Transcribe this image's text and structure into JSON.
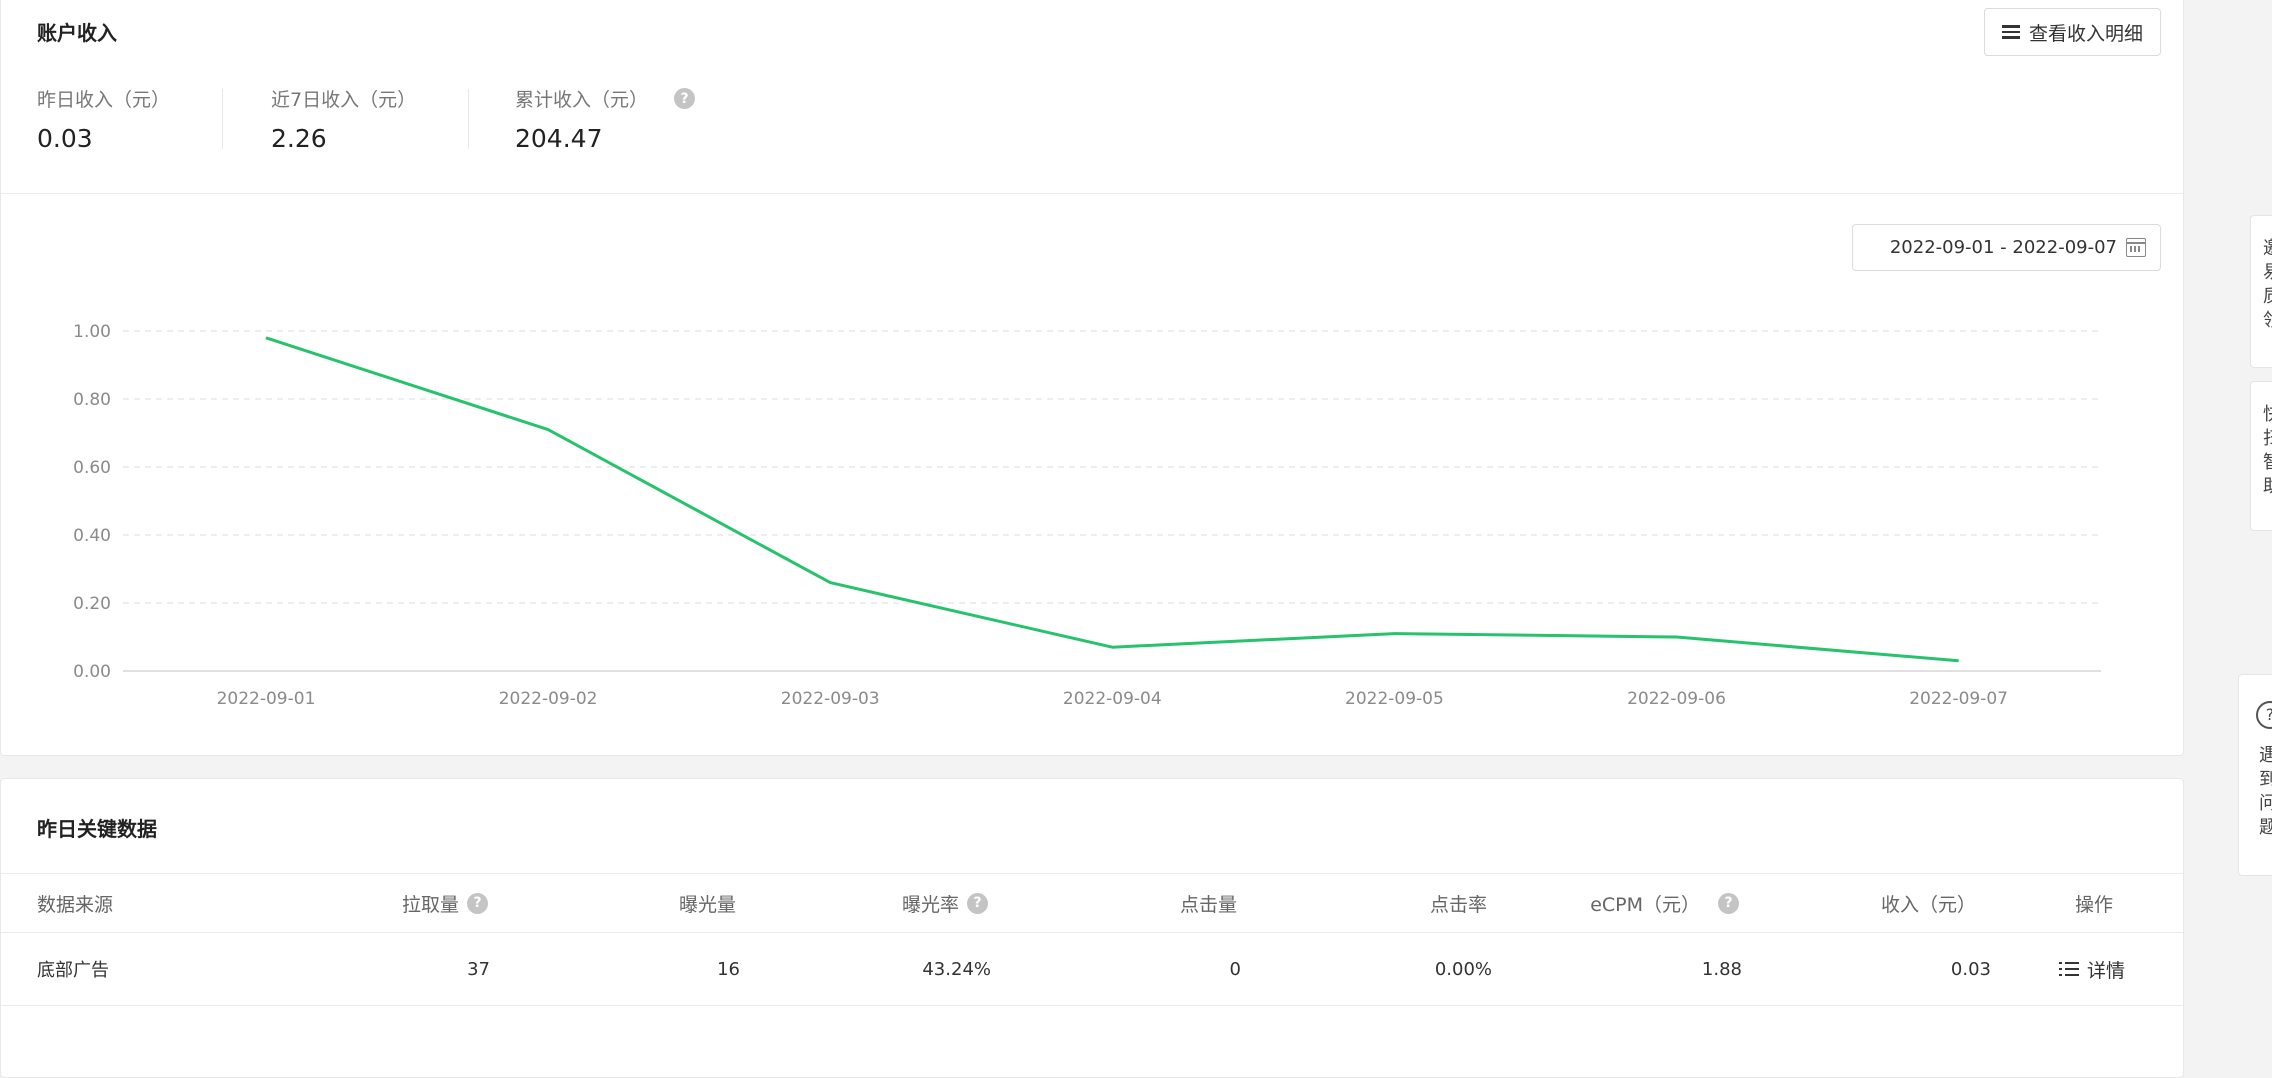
{
  "income": {
    "title": "账户收入",
    "view_detail_label": "查看收入明细",
    "stats": [
      {
        "label": "昨日收入（元）",
        "value": "0.03"
      },
      {
        "label": "近7日收入（元）",
        "value": "2.26"
      },
      {
        "label": "累计收入（元）",
        "value": "204.47",
        "help": "?"
      }
    ],
    "date_range": "2022-09-01 - 2022-09-07"
  },
  "chart_data": {
    "type": "line",
    "x": [
      "2022-09-01",
      "2022-09-02",
      "2022-09-03",
      "2022-09-04",
      "2022-09-05",
      "2022-09-06",
      "2022-09-07"
    ],
    "series": [
      {
        "values": [
          0.98,
          0.71,
          0.26,
          0.07,
          0.11,
          0.1,
          0.03
        ],
        "color": "#27c26c"
      }
    ],
    "yticks": [
      "0.00",
      "0.20",
      "0.40",
      "0.60",
      "0.80",
      "1.00"
    ],
    "ylim": [
      0,
      1
    ],
    "grid": true,
    "legend": "none"
  },
  "keydata": {
    "title": "昨日关键数据",
    "columns": [
      {
        "label": "数据来源",
        "help": ""
      },
      {
        "label": "拉取量",
        "help": "?"
      },
      {
        "label": "曝光量",
        "help": ""
      },
      {
        "label": "曝光率",
        "help": "?"
      },
      {
        "label": "点击量",
        "help": ""
      },
      {
        "label": "点击率",
        "help": ""
      },
      {
        "label": "eCPM（元）",
        "help": "?"
      },
      {
        "label": "收入（元）",
        "help": ""
      },
      {
        "label": "操作",
        "help": ""
      }
    ],
    "row": {
      "source": "底部广告",
      "pull": "37",
      "exposure": "16",
      "exposure_rate": "43.24%",
      "clicks": "0",
      "ctr": "0.00%",
      "ecpm": "1.88",
      "income": "0.03",
      "action": "详情"
    }
  },
  "float_panels": {
    "panel1": [
      "邀",
      "易",
      "质",
      "领"
    ],
    "panel2": [
      "快",
      "扫",
      "智",
      "助"
    ],
    "panel3_icon": "?",
    "panel3": [
      "遇",
      "到",
      "问",
      "题"
    ]
  },
  "icons": {
    "view_detail": "hamburger-icon",
    "date": "calendar-icon",
    "help": "question-circle-icon",
    "detail": "list-icon"
  },
  "colors": {
    "line": "#27c26c",
    "grid": "#e3e3e3",
    "help_icon": "#c4c4c4"
  }
}
